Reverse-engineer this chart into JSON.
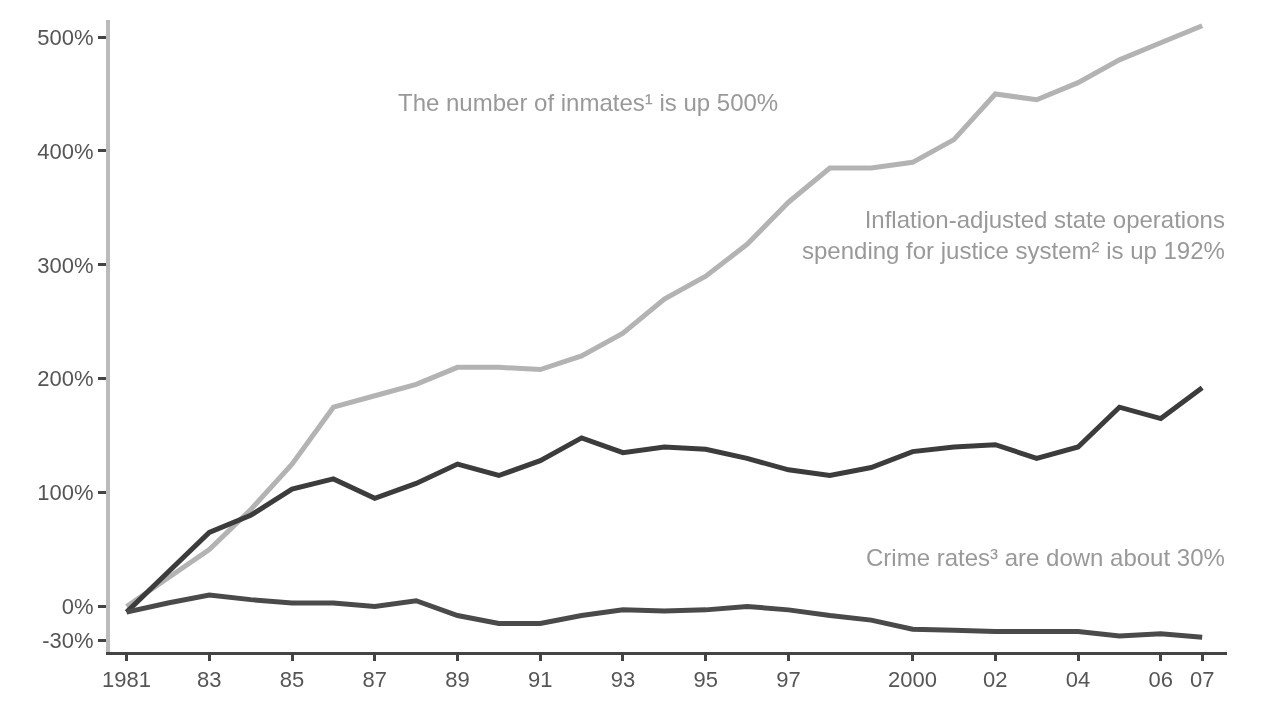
{
  "chart_data": {
    "type": "line",
    "x": [
      1981,
      1982,
      1983,
      1984,
      1985,
      1986,
      1987,
      1988,
      1989,
      1990,
      1991,
      1992,
      1993,
      1994,
      1995,
      1996,
      1997,
      1998,
      1999,
      2000,
      2001,
      2002,
      2003,
      2004,
      2005,
      2006,
      2007
    ],
    "series": [
      {
        "color": "#b3b3b3",
        "values": [
          0,
          25,
          50,
          85,
          125,
          175,
          185,
          195,
          210,
          210,
          208,
          220,
          240,
          270,
          290,
          318,
          355,
          385,
          385,
          390,
          410,
          450,
          445,
          460,
          480,
          495,
          510
        ]
      },
      {
        "color": "#3c3c3c",
        "values": [
          -5,
          30,
          65,
          80,
          103,
          112,
          95,
          108,
          125,
          115,
          128,
          148,
          135,
          140,
          138,
          130,
          120,
          115,
          122,
          136,
          140,
          142,
          130,
          140,
          175,
          165,
          192
        ]
      },
      {
        "color": "#4a4a4a",
        "values": [
          -5,
          3,
          10,
          6,
          3,
          3,
          0,
          5,
          -8,
          -15,
          -15,
          -8,
          -3,
          -4,
          -3,
          0,
          -3,
          -8,
          -12,
          -20,
          -21,
          -22,
          -22,
          -22,
          -26,
          -24,
          -27
        ]
      }
    ],
    "xlim": [
      1980.6,
      2007.6
    ],
    "xticks": [
      1981,
      {
        "value": 1983,
        "label": "83"
      },
      {
        "value": 1985,
        "label": "85"
      },
      {
        "value": 1987,
        "label": "87"
      },
      {
        "value": 1989,
        "label": "89"
      },
      {
        "value": 1991,
        "label": "91"
      },
      {
        "value": 1993,
        "label": "93"
      },
      {
        "value": 1995,
        "label": "95"
      },
      {
        "value": 1997,
        "label": "97"
      },
      2000,
      {
        "value": 2002,
        "label": "02"
      },
      {
        "value": 2004,
        "label": "04"
      },
      {
        "value": 2006,
        "label": "06"
      },
      {
        "value": 2007,
        "label": "07"
      }
    ],
    "ylim": [
      -40,
      515
    ],
    "yticks": [
      {
        "value": -30,
        "label": "-30%"
      },
      {
        "value": 0,
        "label": "0%"
      },
      {
        "value": 100,
        "label": "100%"
      },
      {
        "value": 200,
        "label": "200%"
      },
      {
        "value": 300,
        "label": "300%"
      },
      {
        "value": 400,
        "label": "400%"
      },
      {
        "value": 500,
        "label": "500%"
      }
    ],
    "annotations": [
      "The number of inmates¹ is up 500%",
      "Inflation-adjusted state operations\nspending for justice system² is up 192%",
      "Crime rates³ are down about 30%"
    ],
    "grid": false,
    "marker": "none",
    "line_style": "solid"
  }
}
